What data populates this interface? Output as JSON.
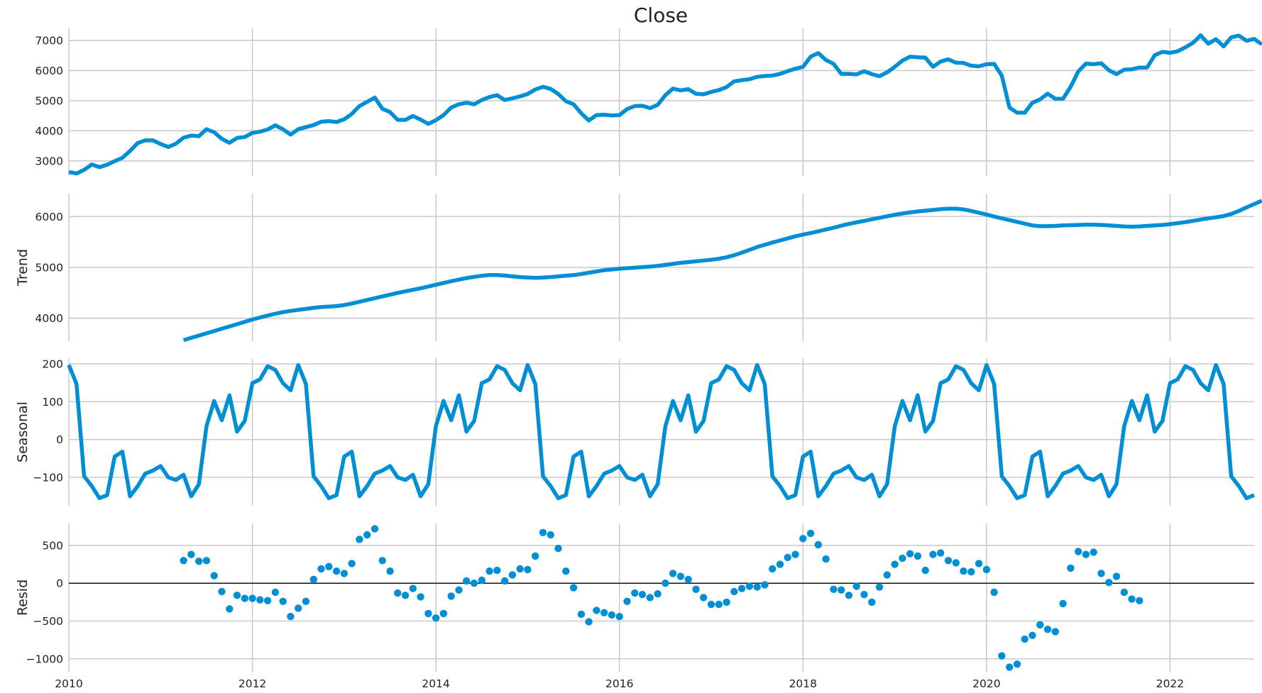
{
  "chart_data": {
    "type": "line",
    "title": "Close",
    "x_axis": {
      "range": [
        2010.0,
        2022.917
      ],
      "ticks": [
        2010,
        2012,
        2014,
        2016,
        2018,
        2020,
        2022
      ],
      "tick_labels": [
        "2010",
        "2012",
        "2014",
        "2016",
        "2018",
        "2020",
        "2022"
      ]
    },
    "x_start": {
      "year": 2010,
      "month": 1
    },
    "panels": [
      {
        "name": "close",
        "ylabel": "",
        "kind": "line",
        "ylim": [
          2500,
          7400
        ],
        "yticks": [
          3000,
          4000,
          5000,
          6000,
          7000
        ],
        "ytick_labels": [
          "3000",
          "4000",
          "5000",
          "6000",
          "7000"
        ],
        "values": [
          2630,
          2580,
          2700,
          2880,
          2790,
          2870,
          2990,
          3100,
          3330,
          3590,
          3680,
          3680,
          3560,
          3460,
          3570,
          3770,
          3840,
          3820,
          4050,
          3950,
          3730,
          3600,
          3760,
          3790,
          3930,
          3970,
          4040,
          4180,
          4050,
          3870,
          4050,
          4120,
          4190,
          4300,
          4320,
          4290,
          4380,
          4560,
          4820,
          4960,
          5100,
          4730,
          4620,
          4360,
          4360,
          4490,
          4370,
          4230,
          4350,
          4520,
          4770,
          4880,
          4930,
          4880,
          5020,
          5120,
          5180,
          5020,
          5080,
          5140,
          5220,
          5370,
          5460,
          5390,
          5220,
          4980,
          4880,
          4580,
          4340,
          4520,
          4530,
          4510,
          4520,
          4720,
          4820,
          4830,
          4750,
          4860,
          5180,
          5400,
          5340,
          5380,
          5230,
          5210,
          5290,
          5350,
          5450,
          5640,
          5680,
          5710,
          5790,
          5820,
          5830,
          5890,
          5980,
          6060,
          6120,
          6460,
          6580,
          6350,
          6220,
          5890,
          5890,
          5870,
          5980,
          5880,
          5810,
          5940,
          6120,
          6330,
          6460,
          6440,
          6430,
          6120,
          6300,
          6370,
          6260,
          6250,
          6160,
          6140,
          6210,
          6220,
          5830,
          4770,
          4600,
          4600,
          4930,
          5040,
          5230,
          5060,
          5060,
          5460,
          5970,
          6230,
          6210,
          6240,
          6010,
          5880,
          6030,
          6040,
          6100,
          6100,
          6510,
          6620,
          6590,
          6640,
          6770,
          6920,
          7170,
          6890,
          7040,
          6800,
          7100,
          7160,
          6990,
          7050,
          6870
        ]
      },
      {
        "name": "trend",
        "ylabel": "Trend",
        "kind": "line",
        "ylim": [
          3550,
          6450
        ],
        "yticks": [
          4000,
          5000,
          6000
        ],
        "ytick_labels": [
          "4000",
          "5000",
          "6000"
        ],
        "first_index": 15,
        "values": [
          3570,
          3615,
          3660,
          3705,
          3750,
          3795,
          3840,
          3885,
          3930,
          3975,
          4015,
          4055,
          4090,
          4120,
          4145,
          4165,
          4185,
          4205,
          4220,
          4230,
          4240,
          4260,
          4290,
          4325,
          4360,
          4395,
          4430,
          4465,
          4500,
          4530,
          4560,
          4590,
          4625,
          4660,
          4695,
          4730,
          4760,
          4790,
          4815,
          4835,
          4850,
          4850,
          4840,
          4825,
          4810,
          4800,
          4795,
          4800,
          4810,
          4825,
          4835,
          4850,
          4870,
          4895,
          4920,
          4945,
          4960,
          4975,
          4985,
          4995,
          5005,
          5015,
          5030,
          5050,
          5070,
          5090,
          5105,
          5120,
          5135,
          5150,
          5170,
          5200,
          5240,
          5290,
          5345,
          5400,
          5445,
          5490,
          5530,
          5570,
          5610,
          5645,
          5675,
          5710,
          5745,
          5780,
          5820,
          5855,
          5885,
          5915,
          5945,
          5975,
          6005,
          6035,
          6060,
          6080,
          6100,
          6115,
          6130,
          6145,
          6155,
          6155,
          6140,
          6110,
          6075,
          6040,
          6000,
          5965,
          5930,
          5895,
          5860,
          5825,
          5810,
          5810,
          5815,
          5825,
          5830,
          5835,
          5840,
          5840,
          5835,
          5825,
          5815,
          5805,
          5800,
          5805,
          5815,
          5825,
          5835,
          5850,
          5870,
          5890,
          5915,
          5940,
          5965,
          5985,
          6010,
          6050,
          6110,
          6180,
          6245,
          6310
        ]
      },
      {
        "name": "seasonal",
        "ylabel": "Seasonal",
        "kind": "line",
        "ylim": [
          -175,
          215
        ],
        "yticks": [
          -100,
          0,
          100,
          200
        ],
        "ytick_labels": [
          "−100",
          "0",
          "100",
          "200"
        ],
        "values": [
          197,
          147,
          -97,
          -123,
          -155,
          -147,
          -45,
          -32,
          -150,
          -123,
          -90,
          -82,
          -70,
          -100,
          -107,
          -93,
          -150,
          -118,
          35,
          102,
          51,
          117,
          21,
          49,
          149,
          159,
          194,
          184,
          149,
          130,
          197,
          147,
          -97,
          -123,
          -155,
          -147,
          -45,
          -32,
          -150,
          -123,
          -90,
          -82,
          -70,
          -100,
          -107,
          -93,
          -150,
          -118,
          35,
          102,
          51,
          117,
          21,
          49,
          149,
          159,
          194,
          184,
          149,
          130,
          197,
          147,
          -97,
          -123,
          -155,
          -147,
          -45,
          -32,
          -150,
          -123,
          -90,
          -82,
          -70,
          -100,
          -107,
          -93,
          -150,
          -118,
          35,
          102,
          51,
          117,
          21,
          49,
          149,
          159,
          194,
          184,
          149,
          130,
          197,
          147,
          -97,
          -123,
          -155,
          -147,
          -45,
          -32,
          -150,
          -123,
          -90,
          -82,
          -70,
          -100,
          -107,
          -93,
          -150,
          -118,
          35,
          102,
          51,
          117,
          21,
          49,
          149,
          159,
          194,
          184,
          149,
          130,
          197,
          147,
          -97,
          -123,
          -155,
          -147,
          -45,
          -32,
          -150,
          -123,
          -90,
          -82,
          -70,
          -100,
          -107,
          -93,
          -150,
          -118,
          35,
          102,
          51,
          117,
          21,
          49,
          149,
          159,
          194,
          184,
          149,
          130,
          197,
          147,
          -97,
          -123,
          -155,
          -147
        ]
      },
      {
        "name": "resid",
        "ylabel": "Resid",
        "kind": "scatter",
        "ylim": [
          -1170,
          790
        ],
        "yticks": [
          -1000,
          -500,
          0,
          500
        ],
        "ytick_labels": [
          "−1000",
          "−500",
          "0",
          "500"
        ],
        "zero_line": true,
        "first_index": 15,
        "values": [
          300,
          380,
          290,
          300,
          100,
          -110,
          -340,
          -160,
          -200,
          -200,
          -220,
          -230,
          -120,
          -240,
          -440,
          -330,
          -240,
          50,
          190,
          220,
          160,
          130,
          260,
          580,
          640,
          720,
          300,
          160,
          -130,
          -160,
          -70,
          -180,
          -400,
          -460,
          -400,
          -170,
          -90,
          30,
          0,
          40,
          160,
          170,
          30,
          110,
          190,
          180,
          360,
          670,
          640,
          460,
          160,
          -60,
          -410,
          -510,
          -360,
          -390,
          -420,
          -440,
          -240,
          -130,
          -150,
          -190,
          -140,
          0,
          130,
          90,
          50,
          -80,
          -190,
          -280,
          -280,
          -250,
          -110,
          -70,
          -40,
          -50,
          -20,
          190,
          250,
          340,
          380,
          590,
          660,
          510,
          320,
          -80,
          -90,
          -160,
          -40,
          -150,
          -250,
          -50,
          110,
          250,
          330,
          390,
          360,
          170,
          380,
          400,
          300,
          270,
          160,
          150,
          260,
          180,
          -120,
          -960,
          -1110,
          -1070,
          -740,
          -690,
          -550,
          -610,
          -640,
          -270,
          200,
          420,
          380,
          410,
          130,
          10,
          90,
          -120,
          -210,
          -230
        ]
      }
    ]
  }
}
